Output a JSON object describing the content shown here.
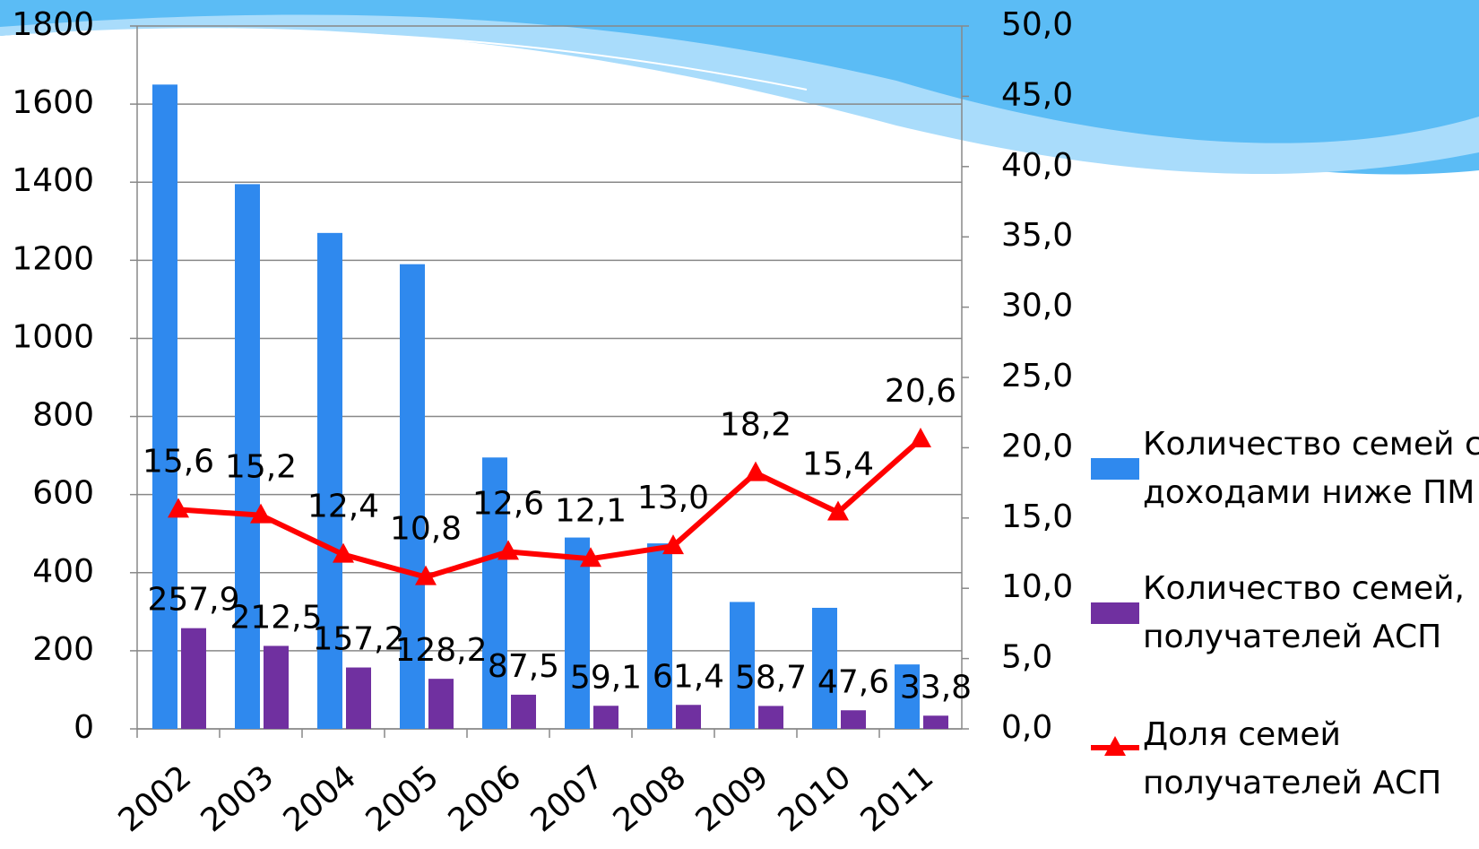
{
  "chart_data": {
    "type": "bar",
    "categories": [
      "2002",
      "2003",
      "2004",
      "2005",
      "2006",
      "2007",
      "2008",
      "2009",
      "2010",
      "2011"
    ],
    "series": [
      {
        "name": "Количество семей с доходами ниже ПМ",
        "type": "bar",
        "color": "#2f89ee",
        "values": [
          1650,
          1395,
          1270,
          1190,
          695,
          490,
          475,
          325,
          310,
          165
        ]
      },
      {
        "name": "Количество семей, получателей АСП",
        "type": "bar",
        "color": "#7030a0",
        "values": [
          257.9,
          212.5,
          157.2,
          128.2,
          87.5,
          59.1,
          61.4,
          58.7,
          47.6,
          33.8
        ],
        "value_labels": [
          "257,9",
          "212,5",
          "157,2",
          "128,2",
          "87,5",
          "59,1",
          "61,4",
          "58,7",
          "47,6",
          "33,8"
        ]
      },
      {
        "name": "Доля семей получателей АСП",
        "type": "line",
        "axis": "y2",
        "color": "#ff0000",
        "values": [
          15.6,
          15.2,
          12.4,
          10.8,
          12.6,
          12.1,
          13.0,
          18.2,
          15.4,
          20.6
        ],
        "value_labels": [
          "15,6",
          "15,2",
          "12,4",
          "10,8",
          "12,6",
          "12,1",
          "13,0",
          "18,2",
          "15,4",
          "20,6"
        ]
      }
    ],
    "ylim": [
      0,
      1800
    ],
    "yticks": [
      0,
      200,
      400,
      600,
      800,
      1000,
      1200,
      1400,
      1600,
      1800
    ],
    "y2lim": [
      0,
      50
    ],
    "y2ticks": [
      {
        "value": 0,
        "label": "0,0"
      },
      {
        "value": 5,
        "label": "5,0"
      },
      {
        "value": 10,
        "label": "10,0"
      },
      {
        "value": 15,
        "label": "15,0"
      },
      {
        "value": 20,
        "label": "20,0"
      },
      {
        "value": 25,
        "label": "25,0"
      },
      {
        "value": 30,
        "label": "30,0"
      },
      {
        "value": 35,
        "label": "35,0"
      },
      {
        "value": 40,
        "label": "40,0"
      },
      {
        "value": 45,
        "label": "45,0"
      },
      {
        "value": 50,
        "label": "50,0"
      }
    ],
    "grid": true,
    "legend": "right"
  }
}
